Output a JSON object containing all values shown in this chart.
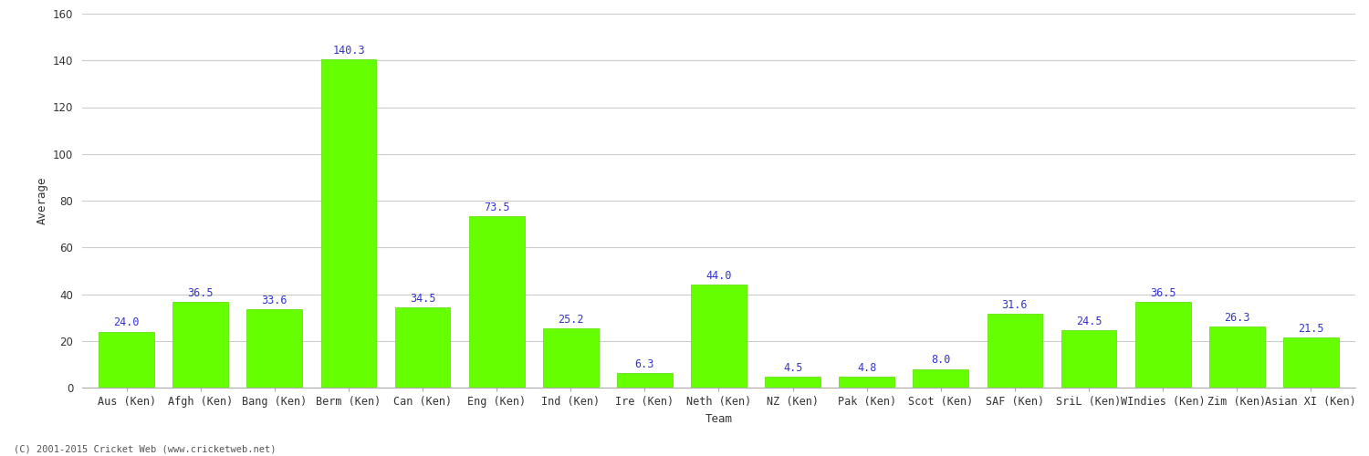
{
  "categories": [
    "Aus (Ken)",
    "Afgh (Ken)",
    "Bang (Ken)",
    "Berm (Ken)",
    "Can (Ken)",
    "Eng (Ken)",
    "Ind (Ken)",
    "Ire (Ken)",
    "Neth (Ken)",
    "NZ (Ken)",
    "Pak (Ken)",
    "Scot (Ken)",
    "SAF (Ken)",
    "SriL (Ken)",
    "WIndies (Ken)",
    "Zim (Ken)",
    "Asian XI (Ken)"
  ],
  "values": [
    24.0,
    36.5,
    33.6,
    140.3,
    34.5,
    73.5,
    25.2,
    6.3,
    44.0,
    4.5,
    4.8,
    8.0,
    31.6,
    24.5,
    36.5,
    26.3,
    21.5
  ],
  "bar_color": "#66ff00",
  "bar_edge_color": "#55dd00",
  "label_color": "#3333cc",
  "xlabel": "Team",
  "ylabel": "Average",
  "ylim": [
    0,
    160
  ],
  "yticks": [
    0,
    20,
    40,
    60,
    80,
    100,
    120,
    140,
    160
  ],
  "background_color": "#ffffff",
  "plot_bg_color": "#f8f8f8",
  "grid_color": "#cccccc",
  "label_fontsize": 8.5,
  "axis_label_fontsize": 9,
  "tick_fontsize": 8.5,
  "footer_text": "(C) 2001-2015 Cricket Web (www.cricketweb.net)",
  "bar_width": 0.75
}
